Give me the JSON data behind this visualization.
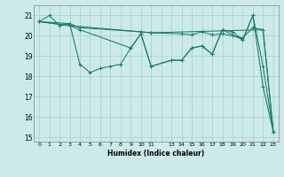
{
  "xlabel": "Humidex (Indice chaleur)",
  "bg_color": "#cceae8",
  "grid_color": "#aad4d0",
  "line_color": "#1a7a6e",
  "ylim": [
    14.8,
    21.5
  ],
  "xlim": [
    -0.5,
    23.5
  ],
  "yticks": [
    15,
    16,
    17,
    18,
    19,
    20,
    21
  ],
  "xtick_positions": [
    0,
    1,
    2,
    3,
    4,
    5,
    6,
    7,
    8,
    9,
    10,
    11,
    12,
    13,
    14,
    15,
    16,
    17,
    18,
    19,
    20,
    21,
    22,
    23
  ],
  "xtick_labels": [
    "0",
    "1",
    "2",
    "3",
    "4",
    "5",
    "6",
    "7",
    "8",
    "9",
    "10",
    "11",
    "",
    "13",
    "14",
    "15",
    "16",
    "17",
    "18",
    "19",
    "20",
    "21",
    "22",
    "23"
  ],
  "series": [
    {
      "x": [
        0,
        1,
        2,
        3,
        4,
        5,
        6,
        7,
        8,
        9,
        10,
        11,
        13,
        14,
        15,
        16,
        17,
        18,
        19,
        20,
        21,
        22,
        23
      ],
      "y": [
        20.7,
        21.0,
        20.5,
        20.6,
        18.6,
        18.2,
        18.4,
        18.5,
        18.6,
        19.4,
        20.1,
        18.5,
        18.8,
        18.8,
        19.4,
        19.5,
        19.1,
        20.3,
        20.2,
        19.8,
        21.0,
        17.5,
        15.3
      ]
    },
    {
      "x": [
        0,
        3,
        4,
        10,
        11,
        14,
        15,
        16,
        17,
        18,
        19,
        20,
        21,
        22,
        23
      ],
      "y": [
        20.7,
        20.6,
        20.4,
        20.2,
        20.15,
        20.1,
        20.05,
        20.2,
        20.05,
        20.1,
        20.0,
        19.9,
        20.4,
        20.3,
        15.3
      ]
    },
    {
      "x": [
        0,
        3,
        11,
        22,
        23
      ],
      "y": [
        20.7,
        20.5,
        20.15,
        20.3,
        15.3
      ]
    },
    {
      "x": [
        0,
        3,
        4,
        9,
        10,
        11,
        13,
        14,
        15,
        16,
        17,
        18,
        20,
        21,
        22,
        23
      ],
      "y": [
        20.7,
        20.5,
        20.3,
        19.4,
        20.1,
        18.5,
        18.8,
        18.8,
        19.4,
        19.5,
        19.1,
        20.3,
        19.8,
        21.0,
        18.5,
        15.3
      ]
    }
  ]
}
